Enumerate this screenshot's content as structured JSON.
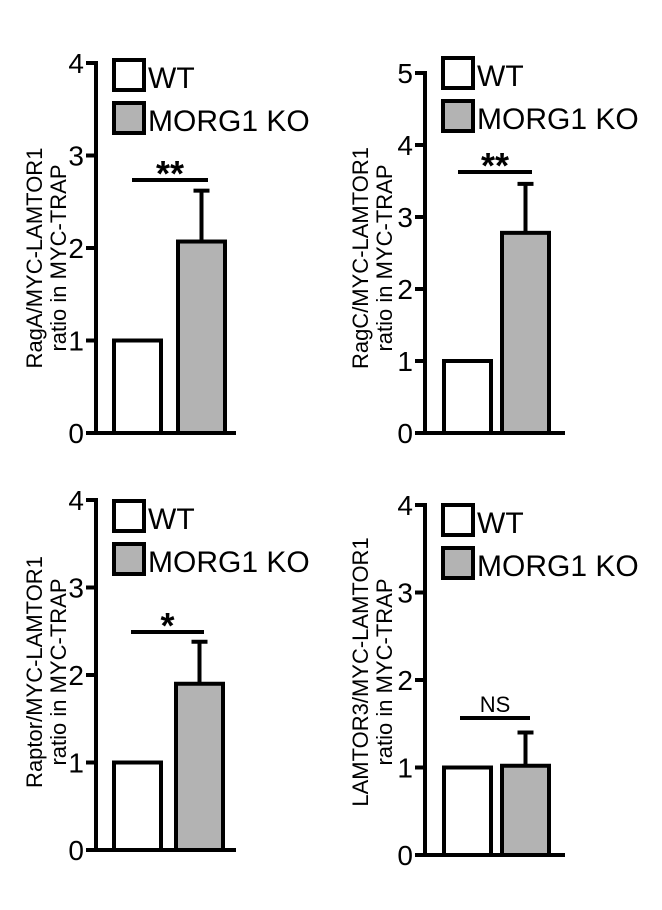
{
  "legend": {
    "wt_label": "WT",
    "ko_label": "MORG1 KO",
    "wt_color": "#ffffff",
    "ko_color": "#b3b3b3"
  },
  "chart_data": [
    {
      "type": "bar",
      "title": "",
      "categories": [
        "WT",
        "MORG1 KO"
      ],
      "values": [
        1.0,
        2.07
      ],
      "errors": [
        0,
        0.55
      ],
      "ylabel_line1": "RagA/MYC-LAMTOR1",
      "ylabel_line2": "ratio in MYC-TRAP",
      "ylim": [
        0,
        4
      ],
      "yticks": [
        "0",
        "1",
        "2",
        "3",
        "4"
      ],
      "significance": "**"
    },
    {
      "type": "bar",
      "title": "",
      "categories": [
        "WT",
        "MORG1 KO"
      ],
      "values": [
        1.0,
        2.78
      ],
      "errors": [
        0,
        0.68
      ],
      "ylabel_line1": "RagC/MYC-LAMTOR1",
      "ylabel_line2": "ratio in MYC-TRAP",
      "ylim": [
        0,
        5
      ],
      "yticks": [
        "0",
        "1",
        "2",
        "3",
        "4",
        "5"
      ],
      "significance": "**"
    },
    {
      "type": "bar",
      "title": "",
      "categories": [
        "WT",
        "MORG1 KO"
      ],
      "values": [
        1.0,
        1.9
      ],
      "errors": [
        0,
        0.48
      ],
      "ylabel_line1": "Raptor/MYC-LAMTOR1",
      "ylabel_line2": "ratio in MYC-TRAP",
      "ylim": [
        0,
        4
      ],
      "yticks": [
        "0",
        "1",
        "2",
        "3",
        "4"
      ],
      "significance": "*"
    },
    {
      "type": "bar",
      "title": "",
      "categories": [
        "WT",
        "MORG1 KO"
      ],
      "values": [
        1.0,
        1.02
      ],
      "errors": [
        0,
        0.38
      ],
      "ylabel_line1": "LAMTOR3/MYC-LAMTOR1",
      "ylabel_line2": "ratio in MYC-TRAP",
      "ylim": [
        0,
        4
      ],
      "yticks": [
        "0",
        "1",
        "2",
        "3",
        "4"
      ],
      "significance": "NS"
    }
  ]
}
